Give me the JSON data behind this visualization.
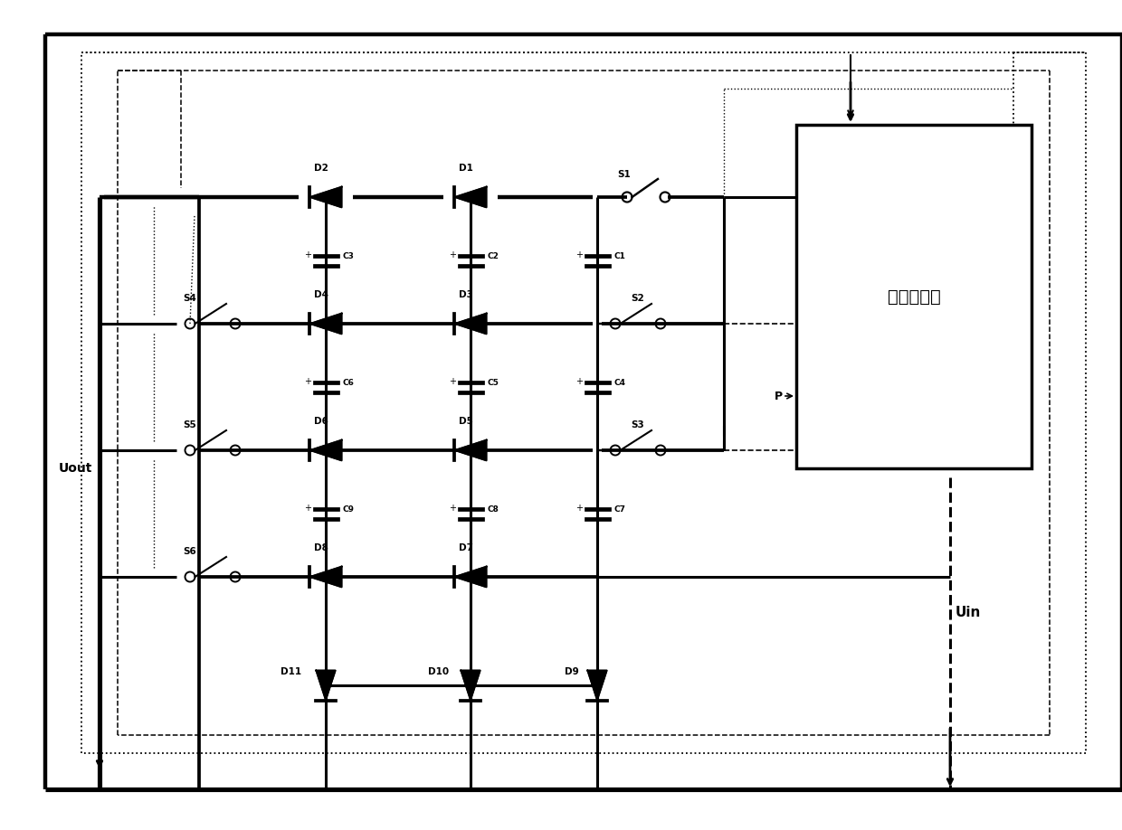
{
  "bg_color": "#ffffff",
  "line_color": "#000000",
  "mcu_label": "单片机系统",
  "uout_label": "Uout",
  "uin_label": "Uin",
  "fig_width": 12.4,
  "fig_height": 9.18
}
